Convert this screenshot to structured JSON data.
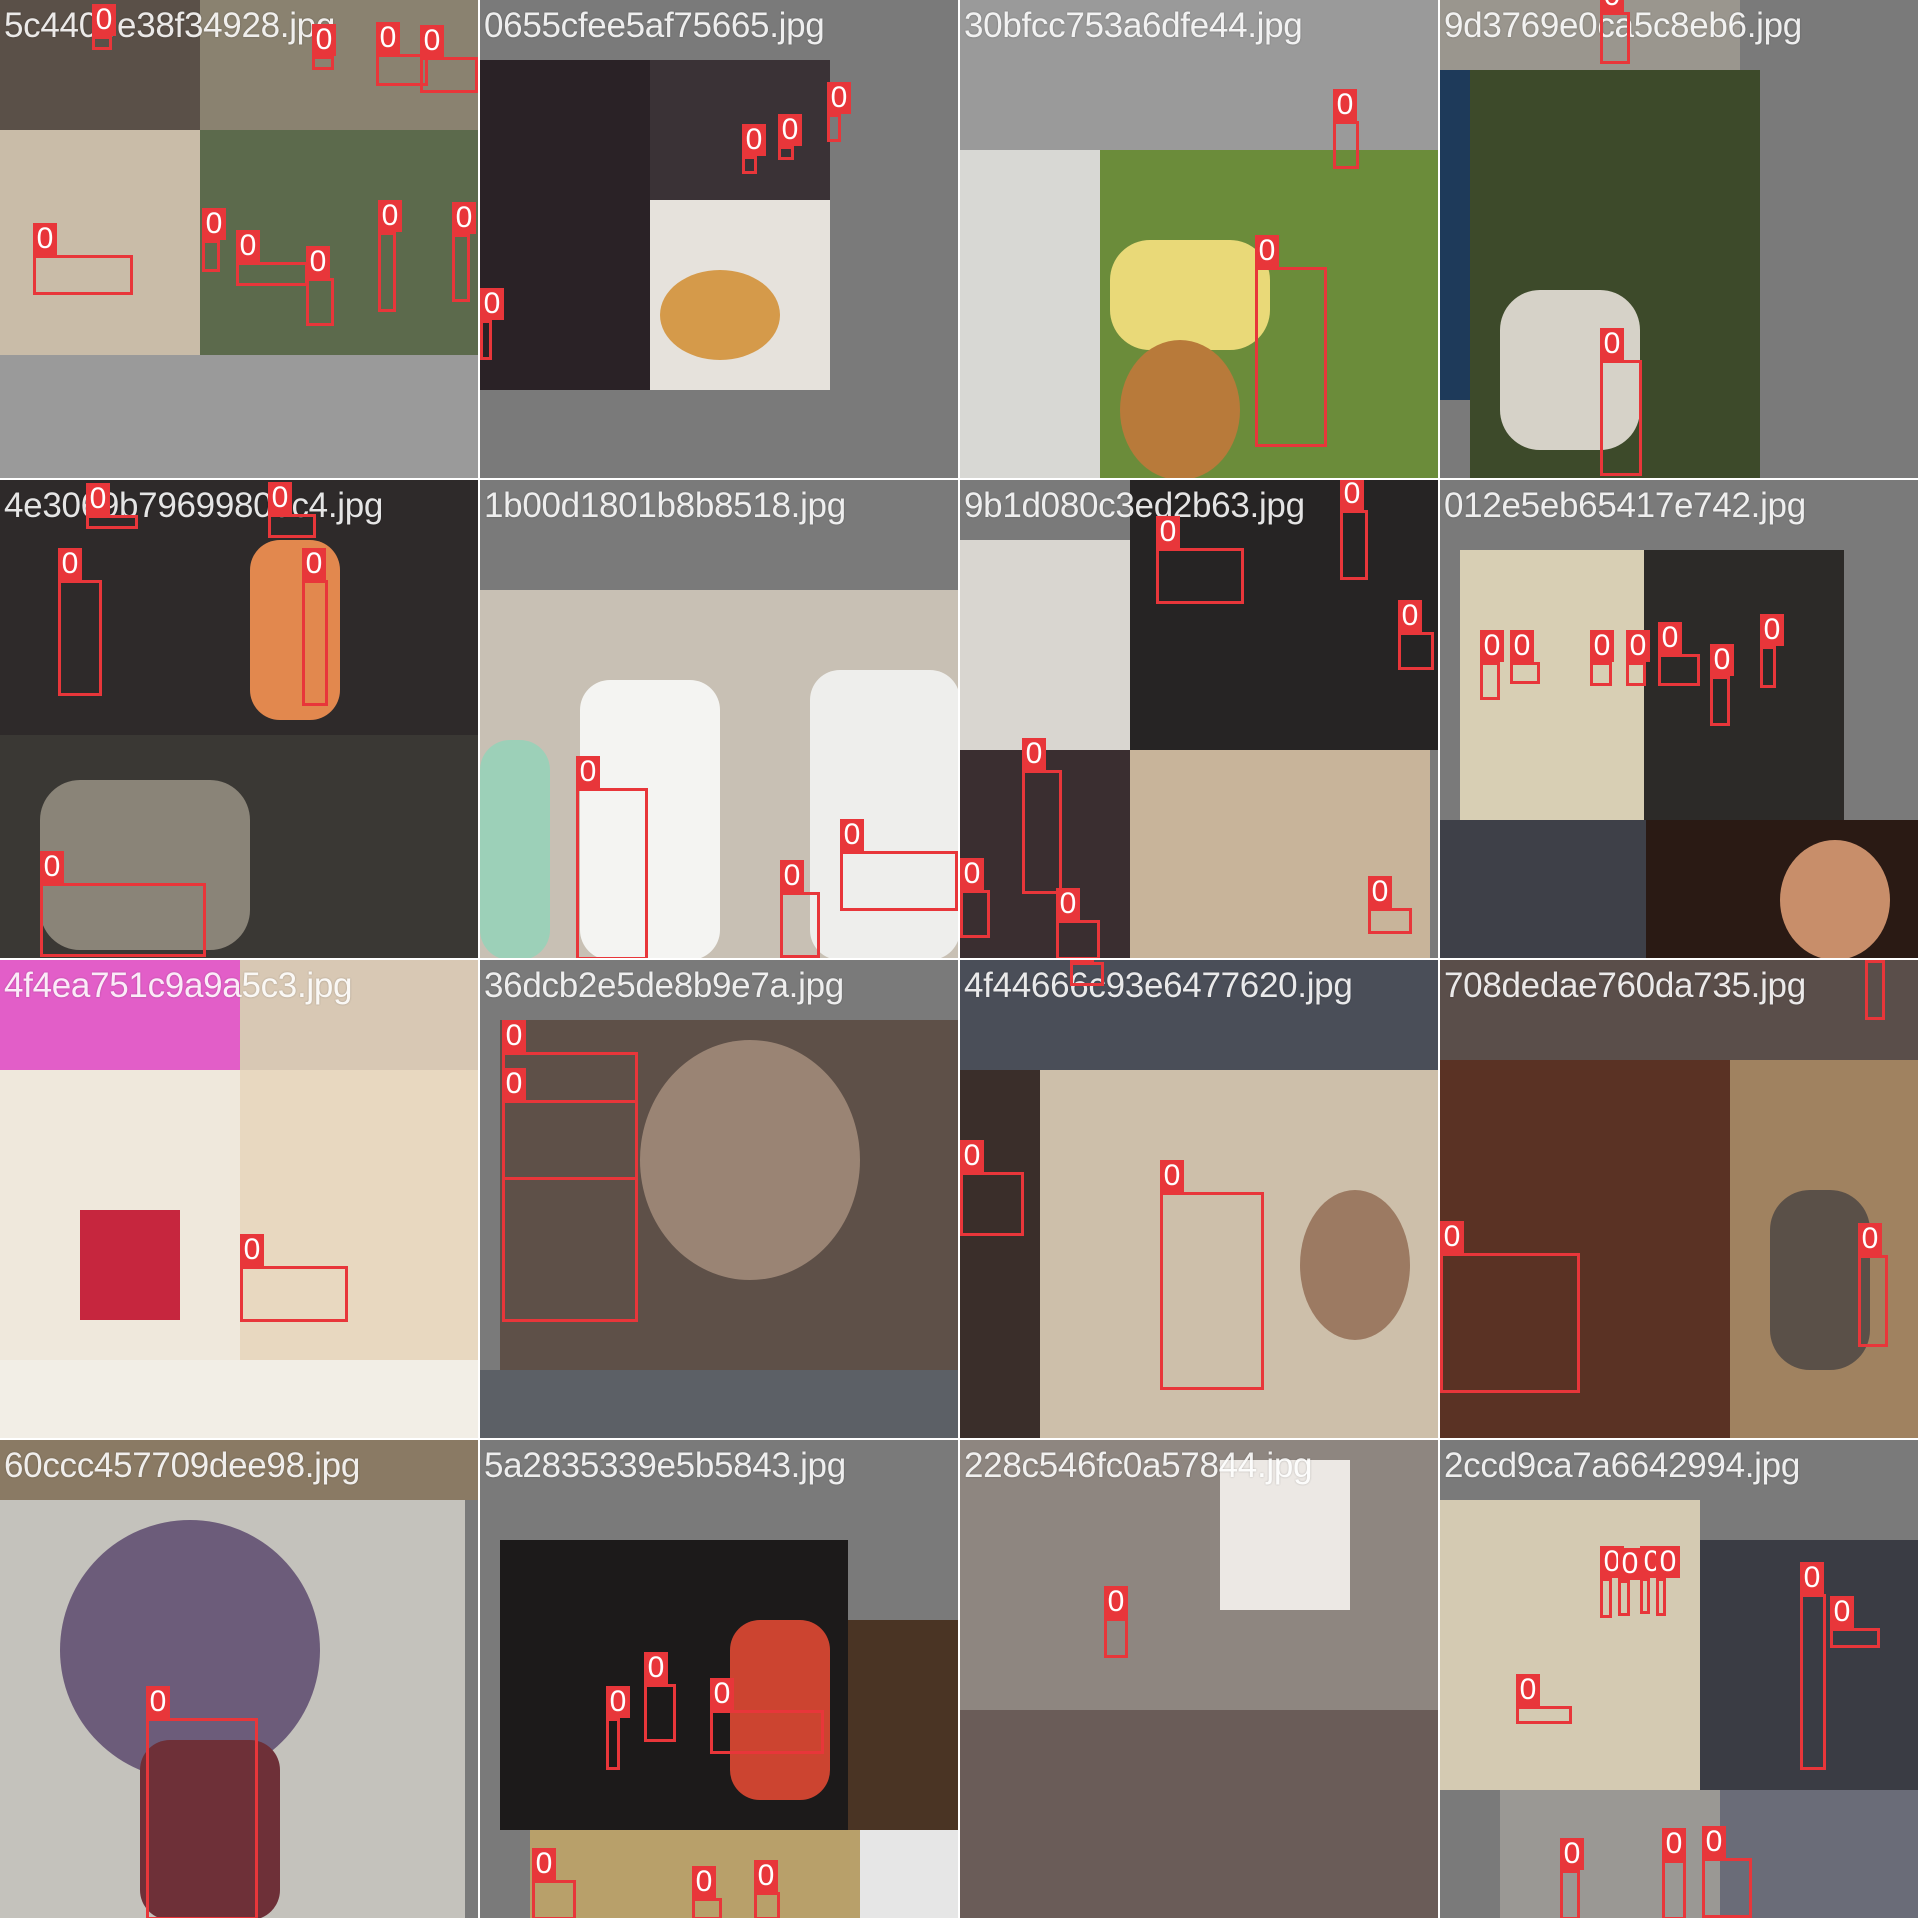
{
  "box_label": "0",
  "colors": {
    "box": "#e8363a",
    "label_text": "#ffffff",
    "tile_background": "#7a7a7a",
    "filename_text": "#ffffff"
  },
  "tiles": [
    {
      "filename": "5c4408e38f34928.jpg"
    },
    {
      "filename": "0655cfee5af75665.jpg"
    },
    {
      "filename": "30bfcc753a6dfe44.jpg"
    },
    {
      "filename": "9d3769e0ca5c8eb6.jpg"
    },
    {
      "filename": "4e3069b79699800c4.jpg"
    },
    {
      "filename": "1b00d1801b8b8518.jpg"
    },
    {
      "filename": "9b1d080c3ed2b63.jpg"
    },
    {
      "filename": "012e5eb65417e742.jpg"
    },
    {
      "filename": "4f4ea751c9a9a5c3.jpg"
    },
    {
      "filename": "36dcb2e5de8b9e7a.jpg"
    },
    {
      "filename": "4f44666c93e6477620.jpg"
    },
    {
      "filename": "708dedae760da735.jpg"
    },
    {
      "filename": "60ccc457709dee98.jpg"
    },
    {
      "filename": "5a2835339e5b5843.jpg"
    },
    {
      "filename": "228c546fc0a57844.jpg"
    },
    {
      "filename": "2ccd9ca7a6642994.jpg"
    }
  ]
}
